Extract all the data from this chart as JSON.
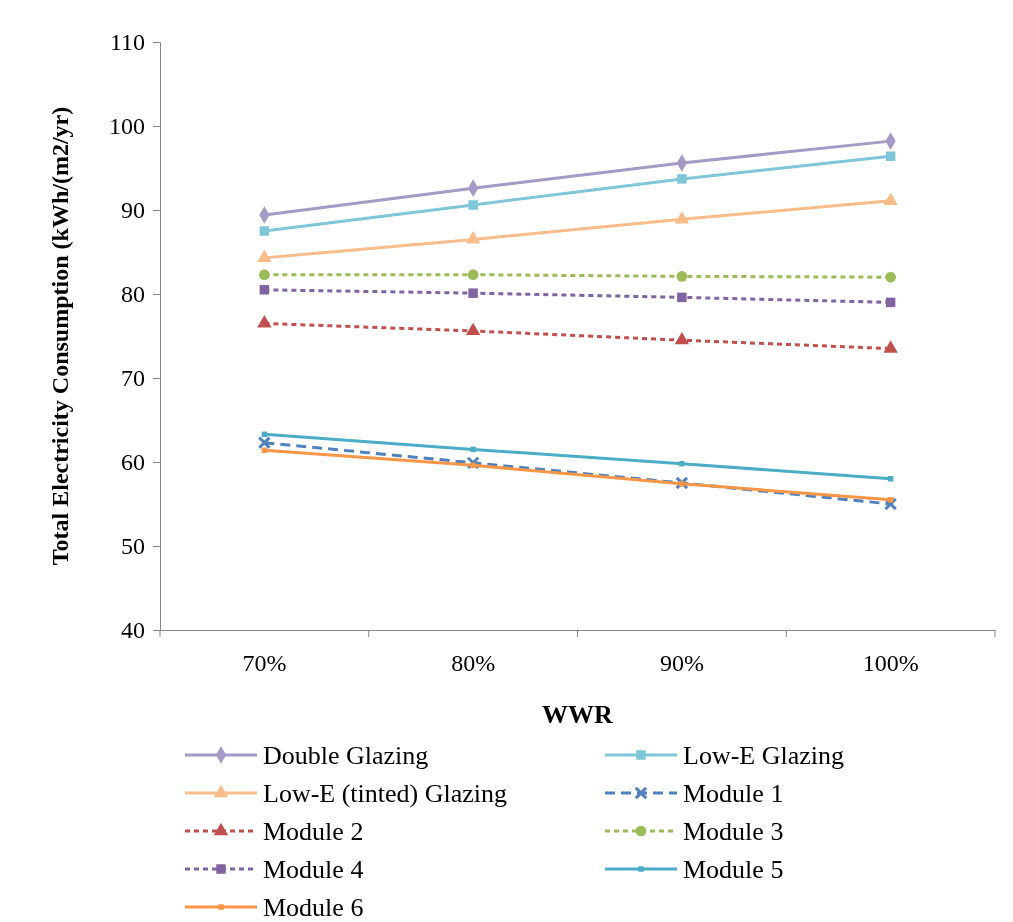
{
  "chart_data": {
    "type": "line",
    "xlabel": "WWR",
    "ylabel": "Total Electricity Consumption (kWh/(m2/yr)",
    "categories": [
      "70%",
      "80%",
      "90%",
      "100%"
    ],
    "ylim": [
      40,
      110
    ],
    "yticks": [
      40,
      50,
      60,
      70,
      80,
      90,
      100,
      110
    ],
    "grid": false,
    "legend": "bottom",
    "series": [
      {
        "name": "Double Glazing",
        "color": "#a599c6",
        "marker": "diamond",
        "line_style": "solid",
        "values": [
          89.4,
          92.6,
          95.6,
          98.2
        ]
      },
      {
        "name": "Low-E Glazing",
        "color": "#7fc6d9",
        "marker": "square",
        "line_style": "solid",
        "values": [
          87.5,
          90.6,
          93.7,
          96.4
        ]
      },
      {
        "name": "Low-E (tinted) Glazing",
        "color": "#f9bc8a",
        "marker": "triangle",
        "line_style": "solid",
        "values": [
          84.3,
          86.5,
          88.9,
          91.1
        ]
      },
      {
        "name": "Module 1",
        "color": "#4f81bd",
        "marker": "cross",
        "line_style": "dashed",
        "values": [
          62.3,
          59.9,
          57.5,
          55.0
        ]
      },
      {
        "name": "Module 2",
        "color": "#c0504d",
        "marker": "triangle",
        "line_style": "dotted",
        "values": [
          76.5,
          75.6,
          74.5,
          73.5
        ]
      },
      {
        "name": "Module 3",
        "color": "#9bbb59",
        "marker": "circle",
        "line_style": "dotted",
        "values": [
          82.3,
          82.3,
          82.1,
          82.0
        ]
      },
      {
        "name": "Module 4",
        "color": "#8064a2",
        "marker": "square",
        "line_style": "dotted",
        "values": [
          80.5,
          80.1,
          79.6,
          79.0
        ]
      },
      {
        "name": "Module 5",
        "color": "#4bacc6",
        "marker": "square",
        "line_style": "solid",
        "values": [
          63.3,
          61.5,
          59.8,
          58.0
        ]
      },
      {
        "name": "Module 6",
        "color": "#f79646",
        "marker": "square",
        "line_style": "solid",
        "values": [
          61.4,
          59.6,
          57.4,
          55.5
        ]
      }
    ]
  }
}
